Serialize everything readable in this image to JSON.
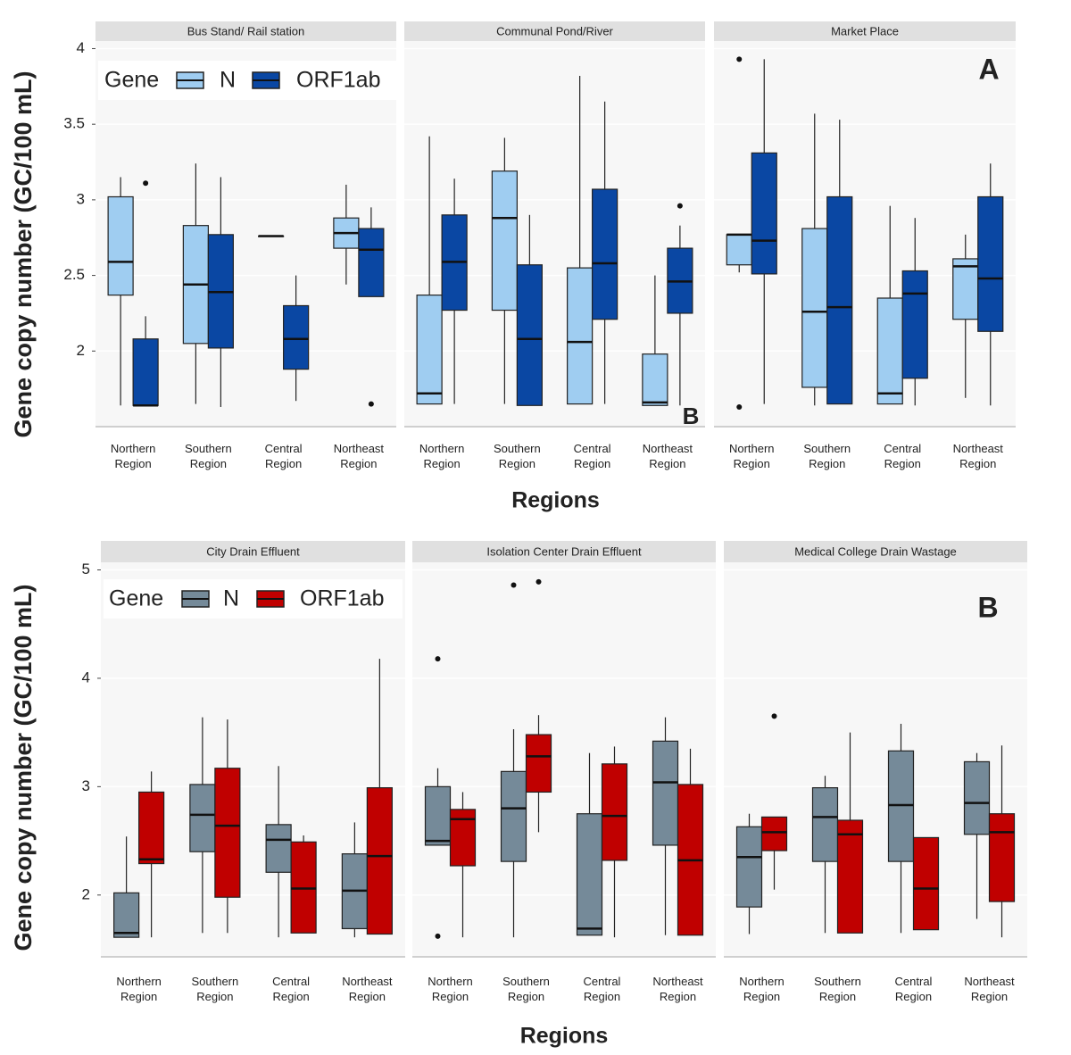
{
  "chart_data": [
    {
      "type": "box",
      "panel_label": "A",
      "annotation": "B",
      "ylabel": "Gene copy number (GC/100 mL)",
      "xlabel": "Regions",
      "legend_title": "Gene",
      "series": [
        {
          "name": "N",
          "color": "#9fcdf1"
        },
        {
          "name": "ORF1ab",
          "color": "#0a47a3"
        }
      ],
      "categories": [
        "Northern Region",
        "Southern Region",
        "Central Region",
        "Northeast Region"
      ],
      "ylim": [
        1.5,
        4.05
      ],
      "yticks": [
        2,
        2.5,
        3,
        3.5,
        4
      ],
      "facets": [
        {
          "title": "Bus Stand/ Rail station",
          "data": [
            [
              {
                "min": 1.64,
                "q1": 2.37,
                "median": 2.59,
                "q3": 3.02,
                "max": 3.15
              },
              {
                "min": 1.65,
                "q1": 2.05,
                "median": 2.44,
                "q3": 2.83,
                "max": 3.24
              },
              {
                "min": 2.76,
                "q1": 2.76,
                "median": 2.76,
                "q3": 2.76,
                "max": 2.76
              },
              {
                "min": 2.44,
                "q1": 2.68,
                "median": 2.78,
                "q3": 2.88,
                "max": 3.1
              }
            ],
            [
              {
                "min": 1.64,
                "q1": 1.64,
                "median": 1.64,
                "q3": 2.08,
                "max": 2.23,
                "outliers": [
                  3.11
                ]
              },
              {
                "min": 1.63,
                "q1": 2.02,
                "median": 2.39,
                "q3": 2.77,
                "max": 3.15
              },
              {
                "min": 1.67,
                "q1": 1.88,
                "median": 2.08,
                "q3": 2.3,
                "max": 2.5
              },
              {
                "min": 2.36,
                "q1": 2.36,
                "median": 2.67,
                "q3": 2.81,
                "max": 2.95,
                "outliers": [
                  1.65
                ]
              }
            ]
          ]
        },
        {
          "title": "Communal Pond/River",
          "data": [
            [
              {
                "min": 1.65,
                "q1": 1.65,
                "median": 1.72,
                "q3": 2.37,
                "max": 3.42
              },
              {
                "min": 1.65,
                "q1": 2.27,
                "median": 2.88,
                "q3": 3.19,
                "max": 3.41
              },
              {
                "min": 1.65,
                "q1": 1.65,
                "median": 2.06,
                "q3": 2.55,
                "max": 3.82
              },
              {
                "min": 1.64,
                "q1": 1.64,
                "median": 1.66,
                "q3": 1.98,
                "max": 2.5
              }
            ],
            [
              {
                "min": 1.65,
                "q1": 2.27,
                "median": 2.59,
                "q3": 2.9,
                "max": 3.14
              },
              {
                "min": 1.64,
                "q1": 1.64,
                "median": 2.08,
                "q3": 2.57,
                "max": 2.9
              },
              {
                "min": 1.65,
                "q1": 2.21,
                "median": 2.58,
                "q3": 3.07,
                "max": 3.65
              },
              {
                "min": 1.64,
                "q1": 2.25,
                "median": 2.46,
                "q3": 2.68,
                "max": 2.83,
                "outliers": [
                  2.96
                ]
              }
            ]
          ]
        },
        {
          "title": "Market Place",
          "data": [
            [
              {
                "min": 2.52,
                "q1": 2.57,
                "median": 2.77,
                "q3": 2.77,
                "max": 2.77,
                "outliers": [
                  3.93,
                  1.63
                ]
              },
              {
                "min": 1.64,
                "q1": 1.76,
                "median": 2.26,
                "q3": 2.81,
                "max": 3.57
              },
              {
                "min": 1.65,
                "q1": 1.65,
                "median": 1.72,
                "q3": 2.35,
                "max": 2.96
              },
              {
                "min": 1.69,
                "q1": 2.21,
                "median": 2.56,
                "q3": 2.61,
                "max": 2.77
              }
            ],
            [
              {
                "min": 1.65,
                "q1": 2.51,
                "median": 2.73,
                "q3": 3.31,
                "max": 3.93
              },
              {
                "min": 1.65,
                "q1": 1.65,
                "median": 2.29,
                "q3": 3.02,
                "max": 3.53
              },
              {
                "min": 1.64,
                "q1": 1.82,
                "median": 2.38,
                "q3": 2.53,
                "max": 2.88
              },
              {
                "min": 1.64,
                "q1": 2.13,
                "median": 2.48,
                "q3": 3.02,
                "max": 3.24
              }
            ]
          ]
        }
      ]
    },
    {
      "type": "box",
      "panel_label": "B",
      "ylabel": "Gene copy number (GC/100 mL)",
      "xlabel": "Regions",
      "legend_title": "Gene",
      "series": [
        {
          "name": "N",
          "color": "#758a99"
        },
        {
          "name": "ORF1ab",
          "color": "#c00000"
        }
      ],
      "categories": [
        "Northern Region",
        "Southern Region",
        "Central Region",
        "Northeast Region"
      ],
      "ylim": [
        1.43,
        5.07
      ],
      "yticks": [
        2,
        3,
        4,
        5
      ],
      "facets": [
        {
          "title": "City Drain Effluent",
          "data": [
            [
              {
                "min": 1.61,
                "q1": 1.61,
                "median": 1.65,
                "q3": 2.02,
                "max": 2.54
              },
              {
                "min": 1.65,
                "q1": 2.4,
                "median": 2.74,
                "q3": 3.02,
                "max": 3.64
              },
              {
                "min": 1.61,
                "q1": 2.21,
                "median": 2.51,
                "q3": 2.65,
                "max": 3.19
              },
              {
                "min": 1.61,
                "q1": 1.69,
                "median": 2.04,
                "q3": 2.38,
                "max": 2.67
              }
            ],
            [
              {
                "min": 1.61,
                "q1": 2.29,
                "median": 2.33,
                "q3": 2.95,
                "max": 3.14
              },
              {
                "min": 1.65,
                "q1": 1.98,
                "median": 2.64,
                "q3": 3.17,
                "max": 3.62
              },
              {
                "min": 1.65,
                "q1": 1.65,
                "median": 2.06,
                "q3": 2.49,
                "max": 2.55
              },
              {
                "min": 1.64,
                "q1": 1.64,
                "median": 2.36,
                "q3": 2.99,
                "max": 4.18
              }
            ]
          ]
        },
        {
          "title": "Isolation Center Drain Effluent",
          "data": [
            [
              {
                "min": 2.46,
                "q1": 2.46,
                "median": 2.5,
                "q3": 3.0,
                "max": 3.17,
                "outliers": [
                  4.18,
                  1.62
                ]
              },
              {
                "min": 1.61,
                "q1": 2.31,
                "median": 2.8,
                "q3": 3.14,
                "max": 3.53,
                "outliers": [
                  4.86
                ]
              },
              {
                "min": 1.63,
                "q1": 1.63,
                "median": 1.69,
                "q3": 2.75,
                "max": 3.31
              },
              {
                "min": 1.63,
                "q1": 2.46,
                "median": 3.04,
                "q3": 3.42,
                "max": 3.64
              }
            ],
            [
              {
                "min": 1.61,
                "q1": 2.27,
                "median": 2.7,
                "q3": 2.79,
                "max": 2.95
              },
              {
                "min": 2.58,
                "q1": 2.95,
                "median": 3.28,
                "q3": 3.48,
                "max": 3.66,
                "outliers": [
                  4.89
                ]
              },
              {
                "min": 1.61,
                "q1": 2.32,
                "median": 2.73,
                "q3": 3.21,
                "max": 3.37
              },
              {
                "min": 1.63,
                "q1": 1.63,
                "median": 2.32,
                "q3": 3.02,
                "max": 3.35
              }
            ]
          ]
        },
        {
          "title": "Medical College Drain Wastage",
          "data": [
            [
              {
                "min": 1.64,
                "q1": 1.89,
                "median": 2.35,
                "q3": 2.63,
                "max": 2.75
              },
              {
                "min": 1.65,
                "q1": 2.31,
                "median": 2.72,
                "q3": 2.99,
                "max": 3.1
              },
              {
                "min": 1.65,
                "q1": 2.31,
                "median": 2.83,
                "q3": 3.33,
                "max": 3.58
              },
              {
                "min": 1.78,
                "q1": 2.56,
                "median": 2.85,
                "q3": 3.23,
                "max": 3.31
              }
            ],
            [
              {
                "min": 2.05,
                "q1": 2.41,
                "median": 2.58,
                "q3": 2.72,
                "max": 2.72,
                "outliers": [
                  3.65
                ]
              },
              {
                "min": 1.65,
                "q1": 1.65,
                "median": 2.56,
                "q3": 2.69,
                "max": 3.5
              },
              {
                "min": 1.68,
                "q1": 1.68,
                "median": 2.06,
                "q3": 2.53,
                "max": 2.53
              },
              {
                "min": 1.61,
                "q1": 1.94,
                "median": 2.58,
                "q3": 2.75,
                "max": 3.38
              }
            ]
          ]
        }
      ]
    }
  ]
}
